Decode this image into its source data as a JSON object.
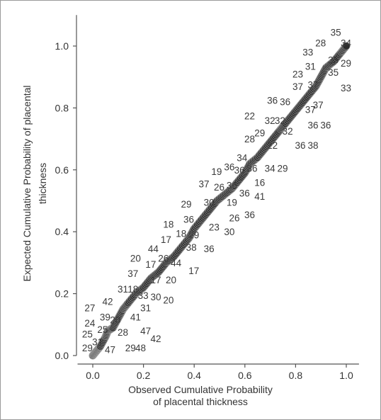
{
  "chart_data": {
    "type": "scatter",
    "xlabel_lines": [
      "Observed Cumulative Probability",
      "of placental thickness"
    ],
    "ylabel_lines": [
      "Expected Cumulative Probability of placental",
      "thickness"
    ],
    "xlim": [
      -0.06,
      1.05
    ],
    "ylim": [
      0.0,
      1.1
    ],
    "x_ticks": [
      "0.0",
      "0.2",
      "0.4",
      "0.6",
      "0.8",
      "1.0"
    ],
    "y_ticks": [
      "0.0",
      "0.2",
      "0.4",
      "0.6",
      "0.8",
      "1.0"
    ],
    "series": [
      {
        "points": [
          [
            0.0,
            0.0
          ],
          [
            0.01,
            0.01
          ],
          [
            0.02,
            0.02
          ],
          [
            0.03,
            0.03
          ],
          [
            0.05,
            0.06
          ],
          [
            0.06,
            0.08
          ],
          [
            0.08,
            0.09
          ],
          [
            0.1,
            0.12
          ],
          [
            0.12,
            0.15
          ],
          [
            0.14,
            0.17
          ],
          [
            0.17,
            0.2
          ],
          [
            0.2,
            0.22
          ],
          [
            0.23,
            0.25
          ],
          [
            0.26,
            0.27
          ],
          [
            0.29,
            0.3
          ],
          [
            0.32,
            0.32
          ],
          [
            0.35,
            0.35
          ],
          [
            0.38,
            0.38
          ],
          [
            0.4,
            0.41
          ],
          [
            0.43,
            0.44
          ],
          [
            0.46,
            0.47
          ],
          [
            0.49,
            0.5
          ],
          [
            0.52,
            0.52
          ],
          [
            0.55,
            0.54
          ],
          [
            0.57,
            0.56
          ],
          [
            0.6,
            0.59
          ],
          [
            0.62,
            0.62
          ],
          [
            0.65,
            0.64
          ],
          [
            0.68,
            0.67
          ],
          [
            0.71,
            0.7
          ],
          [
            0.74,
            0.73
          ],
          [
            0.76,
            0.75
          ],
          [
            0.79,
            0.78
          ],
          [
            0.82,
            0.81
          ],
          [
            0.85,
            0.84
          ],
          [
            0.88,
            0.87
          ],
          [
            0.9,
            0.9
          ],
          [
            0.92,
            0.93
          ],
          [
            0.95,
            0.95
          ],
          [
            0.98,
            0.98
          ],
          [
            1.0,
            1.0
          ]
        ]
      }
    ],
    "point_labels": [
      {
        "text": "35",
        "x": 0.96,
        "y": 1.045
      },
      {
        "text": "34",
        "x": 1.0,
        "y": 1.01
      },
      {
        "text": "28",
        "x": 0.9,
        "y": 1.01
      },
      {
        "text": "33",
        "x": 0.85,
        "y": 0.98
      },
      {
        "text": "35",
        "x": 0.95,
        "y": 0.955
      },
      {
        "text": "29",
        "x": 1.0,
        "y": 0.945
      },
      {
        "text": "31",
        "x": 0.86,
        "y": 0.935
      },
      {
        "text": "23",
        "x": 0.81,
        "y": 0.91
      },
      {
        "text": "35",
        "x": 0.95,
        "y": 0.915
      },
      {
        "text": "37",
        "x": 0.81,
        "y": 0.87
      },
      {
        "text": "37",
        "x": 0.87,
        "y": 0.875
      },
      {
        "text": "33",
        "x": 1.0,
        "y": 0.865
      },
      {
        "text": "36",
        "x": 0.71,
        "y": 0.825
      },
      {
        "text": "36",
        "x": 0.76,
        "y": 0.82
      },
      {
        "text": "37",
        "x": 0.89,
        "y": 0.81
      },
      {
        "text": "37",
        "x": 0.86,
        "y": 0.795
      },
      {
        "text": "22",
        "x": 0.62,
        "y": 0.775
      },
      {
        "text": "32",
        "x": 0.7,
        "y": 0.76
      },
      {
        "text": "32",
        "x": 0.74,
        "y": 0.76
      },
      {
        "text": "36",
        "x": 0.87,
        "y": 0.745
      },
      {
        "text": "36",
        "x": 0.92,
        "y": 0.745
      },
      {
        "text": "32",
        "x": 0.77,
        "y": 0.725
      },
      {
        "text": "29",
        "x": 0.66,
        "y": 0.72
      },
      {
        "text": "28",
        "x": 0.62,
        "y": 0.7
      },
      {
        "text": "22",
        "x": 0.71,
        "y": 0.68
      },
      {
        "text": "36",
        "x": 0.82,
        "y": 0.68
      },
      {
        "text": "38",
        "x": 0.87,
        "y": 0.68
      },
      {
        "text": "34",
        "x": 0.59,
        "y": 0.64
      },
      {
        "text": "36",
        "x": 0.54,
        "y": 0.61
      },
      {
        "text": "36",
        "x": 0.58,
        "y": 0.6
      },
      {
        "text": "36",
        "x": 0.63,
        "y": 0.605
      },
      {
        "text": "34",
        "x": 0.7,
        "y": 0.605
      },
      {
        "text": "29",
        "x": 0.75,
        "y": 0.605
      },
      {
        "text": "19",
        "x": 0.49,
        "y": 0.595
      },
      {
        "text": "16",
        "x": 0.66,
        "y": 0.56
      },
      {
        "text": "37",
        "x": 0.44,
        "y": 0.555
      },
      {
        "text": "26",
        "x": 0.5,
        "y": 0.545
      },
      {
        "text": "36",
        "x": 0.55,
        "y": 0.55
      },
      {
        "text": "36",
        "x": 0.6,
        "y": 0.525
      },
      {
        "text": "41",
        "x": 0.66,
        "y": 0.515
      },
      {
        "text": "29",
        "x": 0.37,
        "y": 0.49
      },
      {
        "text": "30",
        "x": 0.46,
        "y": 0.495
      },
      {
        "text": "19",
        "x": 0.55,
        "y": 0.495
      },
      {
        "text": "36",
        "x": 0.62,
        "y": 0.455
      },
      {
        "text": "26",
        "x": 0.56,
        "y": 0.445
      },
      {
        "text": "36",
        "x": 0.38,
        "y": 0.44
      },
      {
        "text": "23",
        "x": 0.48,
        "y": 0.415
      },
      {
        "text": "30",
        "x": 0.54,
        "y": 0.4
      },
      {
        "text": "18",
        "x": 0.3,
        "y": 0.425
      },
      {
        "text": "18",
        "x": 0.35,
        "y": 0.395
      },
      {
        "text": "29",
        "x": 0.4,
        "y": 0.39
      },
      {
        "text": "17",
        "x": 0.29,
        "y": 0.375
      },
      {
        "text": "38",
        "x": 0.39,
        "y": 0.35
      },
      {
        "text": "36",
        "x": 0.46,
        "y": 0.345
      },
      {
        "text": "44",
        "x": 0.24,
        "y": 0.345
      },
      {
        "text": "20",
        "x": 0.17,
        "y": 0.315
      },
      {
        "text": "26",
        "x": 0.28,
        "y": 0.315
      },
      {
        "text": "44",
        "x": 0.33,
        "y": 0.3
      },
      {
        "text": "17",
        "x": 0.23,
        "y": 0.295
      },
      {
        "text": "17",
        "x": 0.4,
        "y": 0.275
      },
      {
        "text": "37",
        "x": 0.16,
        "y": 0.265
      },
      {
        "text": "20",
        "x": 0.31,
        "y": 0.245
      },
      {
        "text": "17",
        "x": 0.25,
        "y": 0.245
      },
      {
        "text": "31",
        "x": 0.12,
        "y": 0.215
      },
      {
        "text": "18",
        "x": 0.16,
        "y": 0.215
      },
      {
        "text": "33",
        "x": 0.2,
        "y": 0.195
      },
      {
        "text": "30",
        "x": 0.25,
        "y": 0.19
      },
      {
        "text": "20",
        "x": 0.3,
        "y": 0.18
      },
      {
        "text": "42",
        "x": 0.06,
        "y": 0.175
      },
      {
        "text": "27",
        "x": -0.01,
        "y": 0.155
      },
      {
        "text": "31",
        "x": 0.21,
        "y": 0.155
      },
      {
        "text": "39",
        "x": 0.05,
        "y": 0.125
      },
      {
        "text": "41",
        "x": 0.17,
        "y": 0.125
      },
      {
        "text": "20",
        "x": 0.09,
        "y": 0.115
      },
      {
        "text": "24",
        "x": -0.01,
        "y": 0.105
      },
      {
        "text": "25",
        "x": 0.04,
        "y": 0.085
      },
      {
        "text": "25",
        "x": -0.02,
        "y": 0.07
      },
      {
        "text": "28",
        "x": 0.12,
        "y": 0.075
      },
      {
        "text": "47",
        "x": 0.21,
        "y": 0.08
      },
      {
        "text": "42",
        "x": 0.25,
        "y": 0.055
      },
      {
        "text": "31",
        "x": 0.02,
        "y": 0.045
      },
      {
        "text": "29",
        "x": -0.02,
        "y": 0.025
      },
      {
        "text": "47",
        "x": 0.07,
        "y": 0.02
      },
      {
        "text": "29",
        "x": 0.15,
        "y": 0.025
      },
      {
        "text": "48",
        "x": 0.19,
        "y": 0.025
      }
    ]
  }
}
